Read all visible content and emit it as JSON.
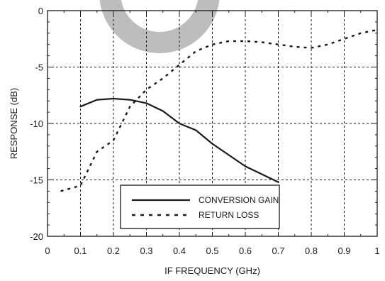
{
  "chart_data": {
    "type": "line",
    "title": "",
    "xlabel": "IF FREQUENCY (GHz)",
    "ylabel": "RESPONSE (dB)",
    "xlim": [
      0,
      1
    ],
    "ylim": [
      -20,
      0
    ],
    "xticks": [
      0,
      0.1,
      0.2,
      0.3,
      0.4,
      0.5,
      0.6,
      0.7,
      0.8,
      0.9,
      1
    ],
    "xtick_labels": [
      "0",
      "0.1",
      "0.2",
      "0.3",
      "0.4",
      "0.5",
      "0.6",
      "0.7",
      "0.8",
      "0.9",
      "1"
    ],
    "yticks": [
      0,
      -5,
      -10,
      -15,
      -20
    ],
    "ytick_labels": [
      "0",
      "-5",
      "-10",
      "-15",
      "-20"
    ],
    "grid": true,
    "legend_position": "bottom-center",
    "series": [
      {
        "name": "CONVERSION GAIN",
        "style": "solid",
        "color": "#1a1a1a",
        "x": [
          0.1,
          0.15,
          0.2,
          0.25,
          0.3,
          0.35,
          0.4,
          0.45,
          0.5,
          0.55,
          0.6,
          0.65,
          0.7
        ],
        "y": [
          -8.5,
          -7.9,
          -7.8,
          -7.9,
          -8.2,
          -8.9,
          -10.0,
          -10.6,
          -11.8,
          -12.8,
          -13.8,
          -14.5,
          -15.2
        ]
      },
      {
        "name": "RETURN LOSS",
        "style": "dashed",
        "color": "#1a1a1a",
        "x": [
          0.04,
          0.1,
          0.15,
          0.2,
          0.25,
          0.3,
          0.35,
          0.4,
          0.45,
          0.5,
          0.55,
          0.6,
          0.65,
          0.7,
          0.75,
          0.8,
          0.85,
          0.9,
          0.95,
          1.0
        ],
        "y": [
          -16.0,
          -15.5,
          -12.5,
          -11.5,
          -8.5,
          -7.0,
          -6.0,
          -4.8,
          -3.6,
          -3.0,
          -2.7,
          -2.7,
          -2.8,
          -3.0,
          -3.2,
          -3.3,
          -3.0,
          -2.5,
          -2.0,
          -1.7
        ]
      }
    ],
    "watermark_color": "#bdbdbd"
  }
}
